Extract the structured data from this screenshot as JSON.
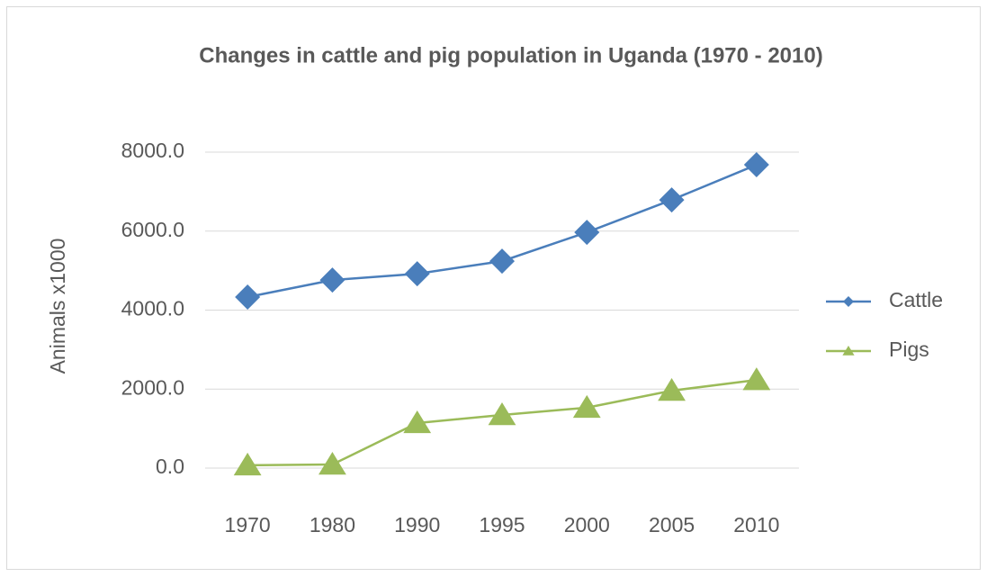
{
  "chart_data": {
    "type": "line",
    "title": "Changes in cattle and pig population in Uganda (1970 - 2010)",
    "y_label": "Animals x1000",
    "categories": [
      "1970",
      "1980",
      "1990",
      "1995",
      "2000",
      "2005",
      "2010"
    ],
    "series": [
      {
        "name": "Cattle",
        "color": "#4a7ebb",
        "marker": "diamond",
        "values": [
          4330,
          4760,
          4920,
          5240,
          5970,
          6790,
          7680
        ]
      },
      {
        "name": "Pigs",
        "color": "#9bbb59",
        "marker": "triangle",
        "values": [
          70,
          90,
          1140,
          1345,
          1530,
          1960,
          2230
        ]
      }
    ],
    "ylim": [
      0,
      8000
    ],
    "yticks": [
      {
        "value": 0,
        "label": "0.0"
      },
      {
        "value": 2000,
        "label": "2000.0"
      },
      {
        "value": 4000,
        "label": "4000.0"
      },
      {
        "value": 6000,
        "label": "6000.0"
      },
      {
        "value": 8000,
        "label": "8000.0"
      }
    ],
    "grid": true,
    "legend": "right"
  }
}
